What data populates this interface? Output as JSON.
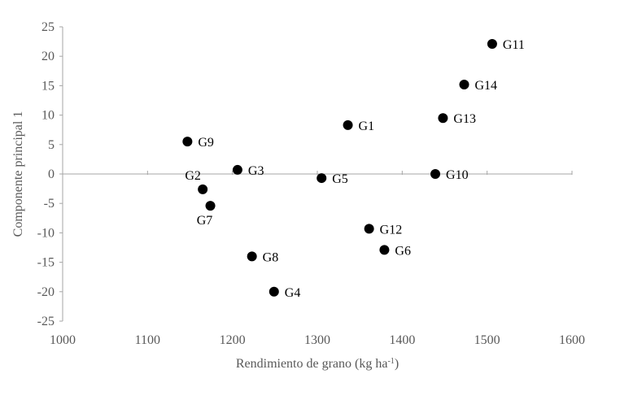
{
  "chart_data": {
    "type": "scatter",
    "title": "",
    "xlabel": "Rendimiento de grano (kg ha",
    "xlabel_sup": "-1",
    "xlabel_end": ")",
    "ylabel": "Componente principal 1",
    "xlim": [
      1000,
      1600
    ],
    "ylim": [
      -25,
      25
    ],
    "xticks": [
      1000,
      1100,
      1200,
      1300,
      1400,
      1500,
      1600
    ],
    "yticks": [
      25,
      20,
      15,
      10,
      5,
      0,
      -5,
      -10,
      -15,
      -20,
      -25
    ],
    "x_axis_crosses_at_y": 0,
    "grid": false,
    "legend": "none",
    "marker_color": "#000000",
    "axis_color": "#a6a6a6",
    "points": [
      {
        "label": "G1",
        "x": 1336,
        "y": 8.3
      },
      {
        "label": "G2",
        "x": 1165,
        "y": -2.6,
        "label_pos": "top-left"
      },
      {
        "label": "G3",
        "x": 1206,
        "y": 0.7
      },
      {
        "label": "G4",
        "x": 1249,
        "y": -20.0
      },
      {
        "label": "G5",
        "x": 1305,
        "y": -0.7
      },
      {
        "label": "G6",
        "x": 1379,
        "y": -12.9
      },
      {
        "label": "G7",
        "x": 1174,
        "y": -5.4,
        "label_pos": "bottom-left"
      },
      {
        "label": "G8",
        "x": 1223,
        "y": -14.0
      },
      {
        "label": "G9",
        "x": 1147,
        "y": 5.5
      },
      {
        "label": "G10",
        "x": 1439,
        "y": 0.0
      },
      {
        "label": "G11",
        "x": 1506,
        "y": 22.1
      },
      {
        "label": "G12",
        "x": 1361,
        "y": -9.3
      },
      {
        "label": "G13",
        "x": 1448,
        "y": 9.5
      },
      {
        "label": "G14",
        "x": 1473,
        "y": 15.2
      }
    ]
  }
}
